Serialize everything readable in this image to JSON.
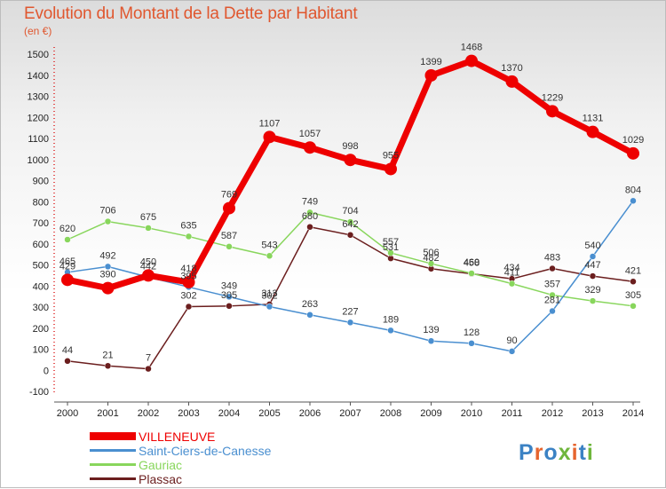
{
  "chart_data": {
    "type": "line",
    "title": "Evolution du Montant de la Dette par Habitant",
    "subtitle": "(en €)",
    "x": [
      "2000",
      "2001",
      "2002",
      "2003",
      "2004",
      "2005",
      "2006",
      "2007",
      "2008",
      "2009",
      "2010",
      "2011",
      "2012",
      "2013",
      "2014"
    ],
    "ylim": [
      -100,
      1500
    ],
    "yticks": [
      -100,
      0,
      100,
      200,
      300,
      400,
      500,
      600,
      700,
      800,
      900,
      1000,
      1100,
      1200,
      1300,
      1400,
      1500
    ],
    "grid": false,
    "legend_position": "bottom-left",
    "series": [
      {
        "name": "VILLENEUVE",
        "color": "#ee0000",
        "values": [
          429,
          390,
          450,
          418,
          769,
          1107,
          1057,
          998,
          955,
          1399,
          1468,
          1370,
          1229,
          1131,
          1029
        ]
      },
      {
        "name": "Saint-Ciers-de-Canesse",
        "color": "#4a8fd0",
        "values": [
          465,
          492,
          442,
          395,
          349,
          302,
          263,
          227,
          189,
          139,
          128,
          90,
          281,
          540,
          804
        ]
      },
      {
        "name": "Gauriac",
        "color": "#88d65c",
        "values": [
          620,
          706,
          675,
          635,
          587,
          543,
          749,
          704,
          557,
          506,
          460,
          411,
          357,
          329,
          305
        ]
      },
      {
        "name": "Plassac",
        "color": "#6b1e1e",
        "values": [
          44,
          21,
          7,
          302,
          305,
          313,
          680,
          642,
          531,
          482,
          458,
          434,
          483,
          447,
          421
        ]
      }
    ]
  },
  "branding": {
    "logo_text": "Proxiti"
  }
}
